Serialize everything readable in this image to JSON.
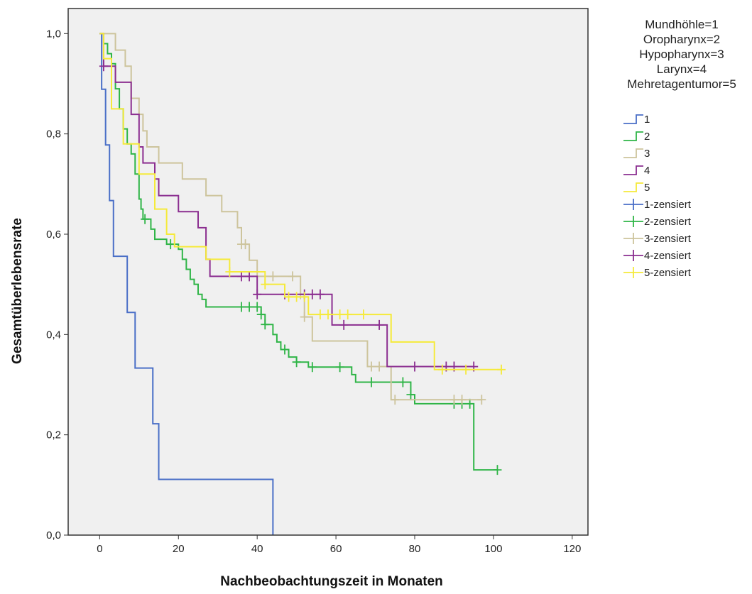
{
  "chart_data": {
    "type": "line",
    "title": "",
    "xlabel": "Nachbeobachtungszeit in Monaten",
    "ylabel": "Gesamtüberlebensrate",
    "xlim": [
      -8,
      124
    ],
    "ylim": [
      0,
      1.05
    ],
    "xticks": [
      0,
      20,
      40,
      60,
      80,
      100,
      120
    ],
    "yticks": [
      0,
      0.2,
      0.4,
      0.6,
      0.8,
      1.0
    ],
    "xtick_labels": [
      "0",
      "20",
      "40",
      "60",
      "80",
      "100",
      "120"
    ],
    "ytick_labels": [
      "0,0",
      "0,2",
      "0,4",
      "0,6",
      "0,8",
      "1,0"
    ],
    "grid": false,
    "background": "#f0f0f0",
    "legend_placement": "right",
    "legend_title_lines": [
      "Mundhöhle=1",
      "Oropharynx=2",
      "Hypopharynx=3",
      "Larynx=4",
      "Mehretagentumor=5"
    ],
    "series": [
      {
        "name": "1",
        "censored_name": "1-zensiert",
        "color": "#4a6fc7",
        "steps": [
          [
            0,
            1.0
          ],
          [
            0.5,
            0.889
          ],
          [
            1.5,
            0.778
          ],
          [
            2.5,
            0.667
          ],
          [
            3.5,
            0.556
          ],
          [
            7,
            0.444
          ],
          [
            9,
            0.333
          ],
          [
            13.5,
            0.222
          ],
          [
            15,
            0.111
          ],
          [
            44,
            0.0
          ]
        ],
        "censored": []
      },
      {
        "name": "2",
        "censored_name": "2-zensiert",
        "color": "#2fb547",
        "steps": [
          [
            0,
            1.0
          ],
          [
            1,
            0.98
          ],
          [
            2,
            0.96
          ],
          [
            3,
            0.94
          ],
          [
            4,
            0.89
          ],
          [
            5,
            0.85
          ],
          [
            6,
            0.81
          ],
          [
            7,
            0.78
          ],
          [
            8,
            0.76
          ],
          [
            9,
            0.72
          ],
          [
            10,
            0.67
          ],
          [
            10.5,
            0.65
          ],
          [
            11,
            0.63
          ],
          [
            13,
            0.61
          ],
          [
            14,
            0.59
          ],
          [
            17,
            0.58
          ],
          [
            20,
            0.57
          ],
          [
            21,
            0.55
          ],
          [
            22,
            0.53
          ],
          [
            23,
            0.51
          ],
          [
            24,
            0.5
          ],
          [
            25,
            0.48
          ],
          [
            26,
            0.47
          ],
          [
            27,
            0.455
          ],
          [
            41,
            0.44
          ],
          [
            42,
            0.42
          ],
          [
            44,
            0.4
          ],
          [
            45,
            0.385
          ],
          [
            46,
            0.37
          ],
          [
            48,
            0.355
          ],
          [
            50,
            0.345
          ],
          [
            53,
            0.335
          ],
          [
            64,
            0.32
          ],
          [
            65,
            0.305
          ],
          [
            70,
            0.305
          ],
          [
            79,
            0.28
          ],
          [
            80,
            0.262
          ],
          [
            95,
            0.13
          ]
        ],
        "censored": [
          11.5,
          18,
          36,
          38,
          40,
          41,
          42,
          47,
          50,
          54,
          61,
          69,
          77,
          79,
          90,
          92,
          94,
          101
        ]
      },
      {
        "name": "3",
        "censored_name": "3-zensiert",
        "color": "#cdc49c",
        "steps": [
          [
            0,
            1.0
          ],
          [
            4,
            0.967
          ],
          [
            6.5,
            0.935
          ],
          [
            8,
            0.871
          ],
          [
            10,
            0.839
          ],
          [
            11,
            0.806
          ],
          [
            12,
            0.774
          ],
          [
            15,
            0.742
          ],
          [
            21,
            0.71
          ],
          [
            27,
            0.677
          ],
          [
            31,
            0.645
          ],
          [
            35,
            0.613
          ],
          [
            36,
            0.58
          ],
          [
            38,
            0.548
          ],
          [
            40,
            0.516
          ],
          [
            51,
            0.48
          ],
          [
            52,
            0.435
          ],
          [
            54,
            0.387
          ],
          [
            68,
            0.336
          ],
          [
            74,
            0.27
          ]
        ],
        "censored": [
          36,
          37,
          44,
          49,
          51,
          52,
          69,
          71,
          75,
          90,
          92,
          97
        ]
      },
      {
        "name": "4",
        "censored_name": "4-zensiert",
        "color": "#8b2e90",
        "steps": [
          [
            0,
            1.0
          ],
          [
            1,
            0.935
          ],
          [
            4,
            0.903
          ],
          [
            8,
            0.839
          ],
          [
            10,
            0.774
          ],
          [
            11,
            0.742
          ],
          [
            14,
            0.71
          ],
          [
            15,
            0.677
          ],
          [
            20,
            0.645
          ],
          [
            25,
            0.613
          ],
          [
            27,
            0.55
          ],
          [
            28,
            0.516
          ],
          [
            40,
            0.48
          ],
          [
            59,
            0.419
          ],
          [
            73,
            0.336
          ]
        ],
        "censored": [
          1,
          36,
          38,
          40,
          47,
          52,
          54,
          56,
          62,
          71,
          80,
          88,
          90,
          95
        ]
      },
      {
        "name": "5",
        "censored_name": "5-zensiert",
        "color": "#f5ea3a",
        "steps": [
          [
            0,
            1.0
          ],
          [
            1,
            0.95
          ],
          [
            3,
            0.85
          ],
          [
            6,
            0.78
          ],
          [
            10,
            0.72
          ],
          [
            14,
            0.65
          ],
          [
            17,
            0.6
          ],
          [
            19,
            0.575
          ],
          [
            27,
            0.55
          ],
          [
            33,
            0.525
          ],
          [
            42,
            0.5
          ],
          [
            47,
            0.475
          ],
          [
            53,
            0.44
          ],
          [
            74,
            0.385
          ],
          [
            85,
            0.33
          ]
        ],
        "censored": [
          33,
          42,
          48,
          50,
          52,
          56,
          58,
          61,
          63,
          67,
          87,
          93,
          102
        ]
      }
    ]
  }
}
